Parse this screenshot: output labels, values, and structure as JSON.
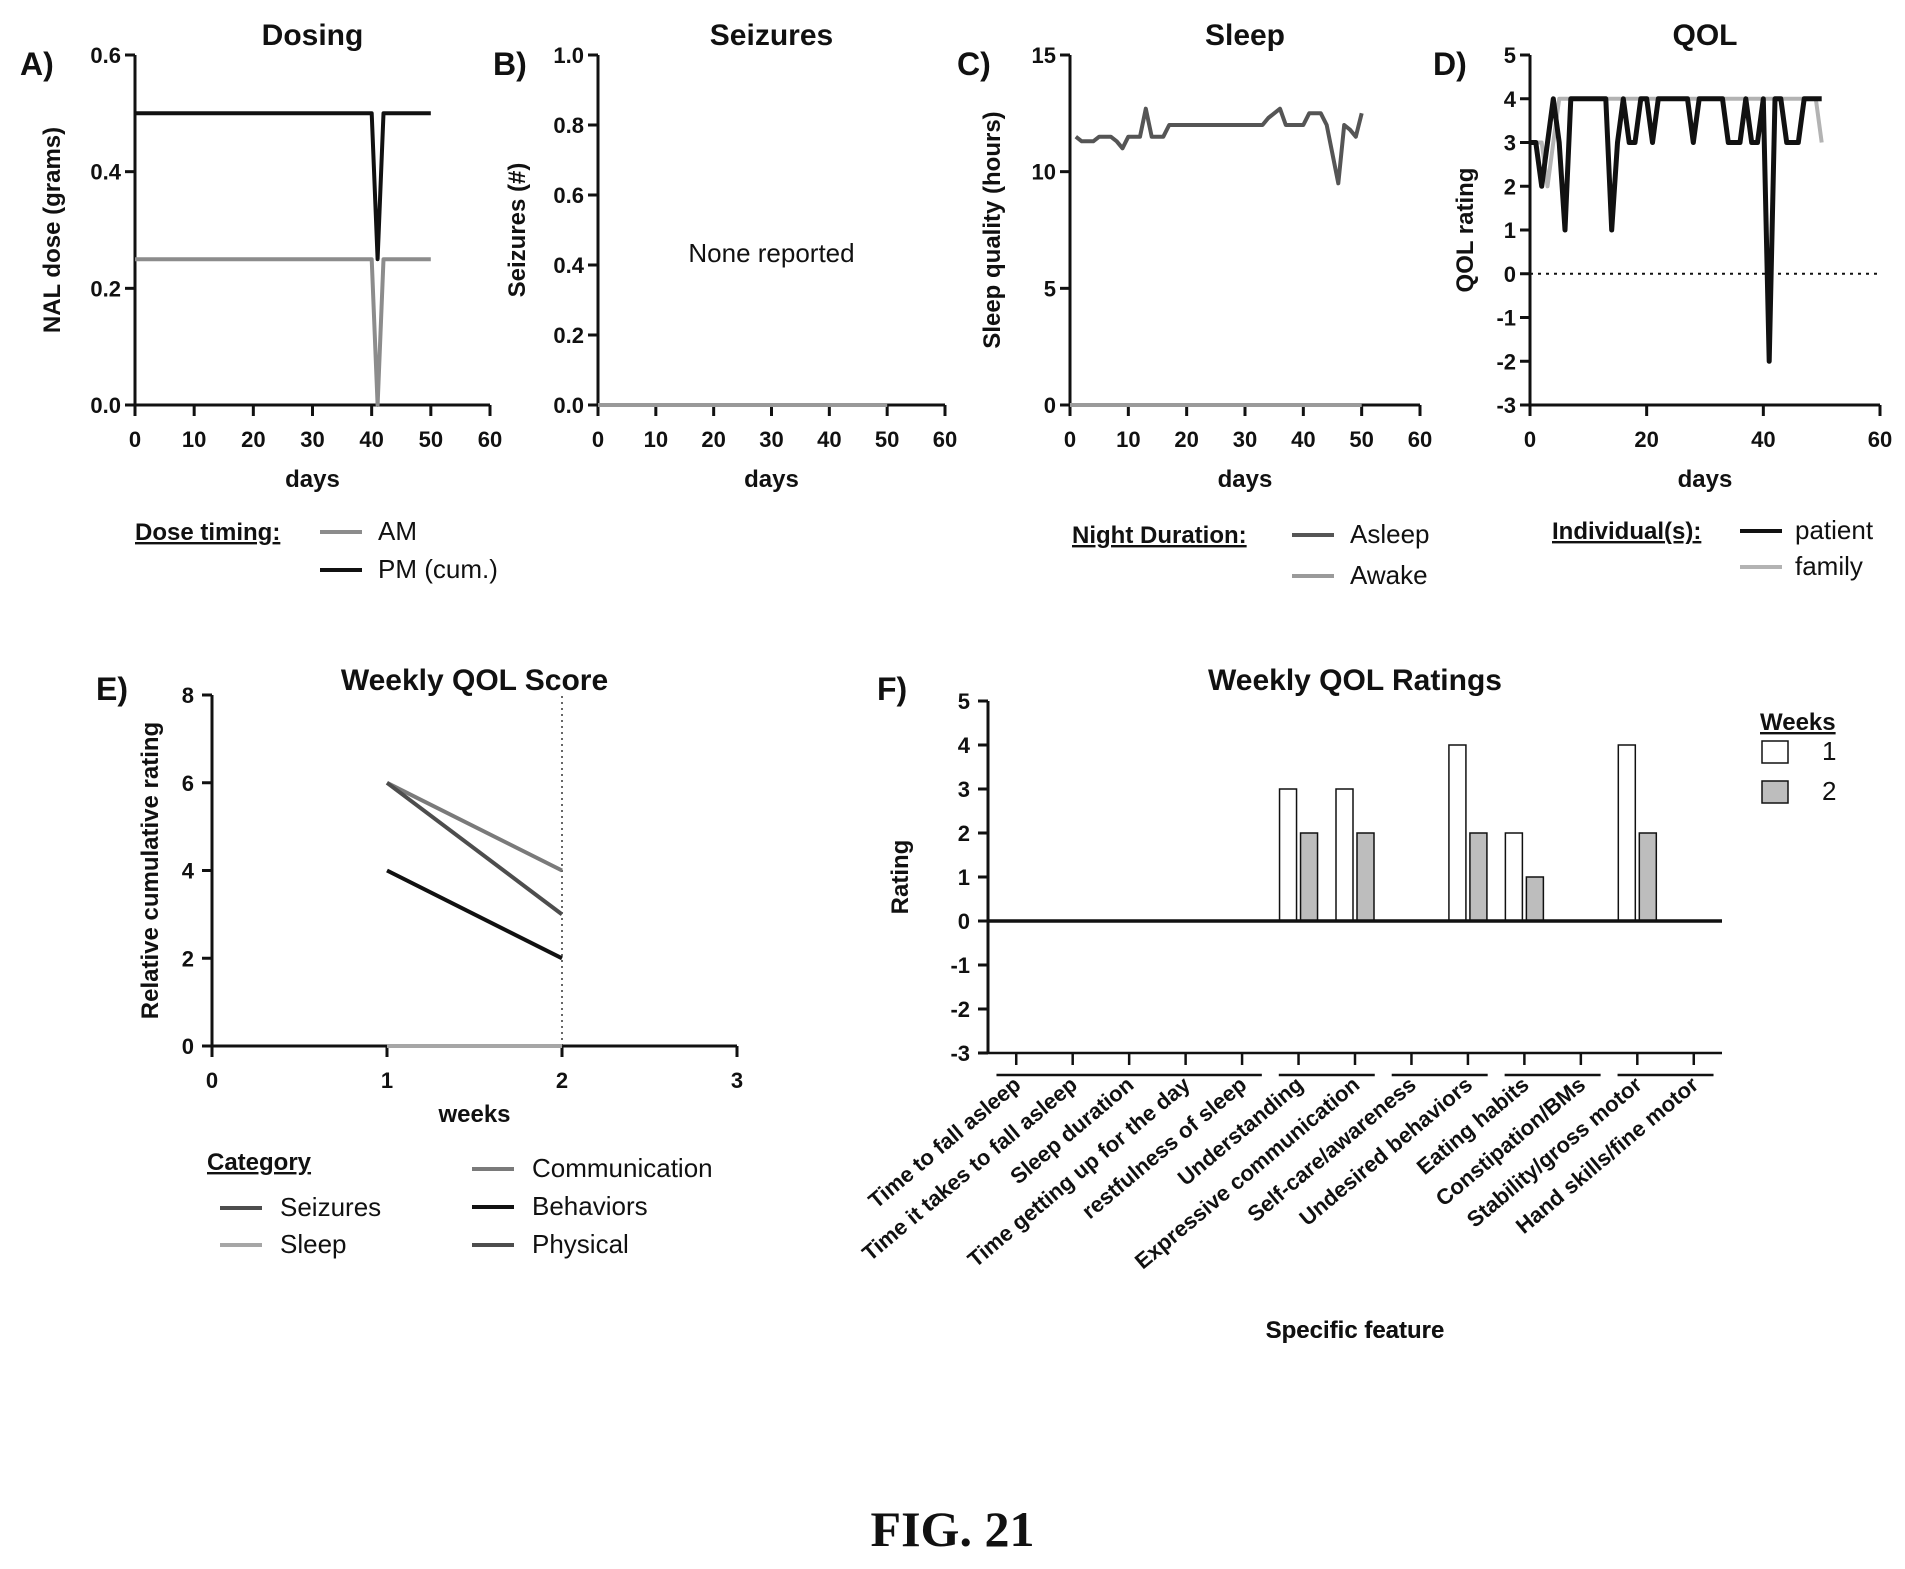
{
  "figure": {
    "caption": "FIG. 21"
  },
  "chart_data": [
    {
      "id": "A",
      "panel_label": "A)",
      "type": "line",
      "title": "Dosing",
      "xlabel": "days",
      "ylabel": "NAL dose (grams)",
      "xlim": [
        0,
        60
      ],
      "ylim": [
        0,
        0.6
      ],
      "xticks": [
        0,
        10,
        20,
        30,
        40,
        50,
        60
      ],
      "yticks": [
        0.0,
        0.2,
        0.4,
        0.6
      ],
      "x_tick_labels": [
        "0",
        "10",
        "20",
        "30",
        "40",
        "50",
        "60"
      ],
      "y_tick_labels": [
        "0.0",
        "0.2",
        "0.4",
        "0.6"
      ],
      "legend": {
        "title": "Dose timing:",
        "placement": "bottom"
      },
      "series": [
        {
          "name": "AM",
          "color": "#8c8c8c",
          "x": [
            0,
            40,
            41,
            42,
            50
          ],
          "y": [
            0.25,
            0.25,
            0.0,
            0.25,
            0.25
          ]
        },
        {
          "name": "PM (cum.)",
          "color": "#111111",
          "x": [
            0,
            40,
            41,
            42,
            50
          ],
          "y": [
            0.5,
            0.5,
            0.25,
            0.5,
            0.5
          ]
        }
      ]
    },
    {
      "id": "B",
      "panel_label": "B)",
      "type": "line",
      "title": "Seizures",
      "xlabel": "days",
      "ylabel": "Seizures (#)",
      "xlim": [
        0,
        60
      ],
      "ylim": [
        0,
        1.0
      ],
      "xticks": [
        0,
        10,
        20,
        30,
        40,
        50,
        60
      ],
      "yticks": [
        0.0,
        0.2,
        0.4,
        0.6,
        0.8,
        1.0
      ],
      "x_tick_labels": [
        "0",
        "10",
        "20",
        "30",
        "40",
        "50",
        "60"
      ],
      "y_tick_labels": [
        "0.0",
        "0.2",
        "0.4",
        "0.6",
        "0.8",
        "1.0"
      ],
      "annotation": "None reported",
      "series": [
        {
          "color": "#999999",
          "x": [
            0,
            50
          ],
          "y": [
            0,
            0
          ]
        }
      ]
    },
    {
      "id": "C",
      "panel_label": "C)",
      "type": "line",
      "title": "Sleep",
      "xlabel": "days",
      "ylabel": "Sleep quality (hours)",
      "xlim": [
        0,
        60
      ],
      "ylim": [
        0,
        15
      ],
      "xticks": [
        0,
        10,
        20,
        30,
        40,
        50,
        60
      ],
      "yticks": [
        0,
        5,
        10,
        15
      ],
      "x_tick_labels": [
        "0",
        "10",
        "20",
        "30",
        "40",
        "50",
        "60"
      ],
      "y_tick_labels": [
        "0",
        "5",
        "10",
        "15"
      ],
      "legend": {
        "title": "Night Duration:",
        "placement": "bottom"
      },
      "series": [
        {
          "name": "Asleep",
          "color": "#555555",
          "x": [
            1,
            2,
            4,
            5,
            7,
            8,
            9,
            10,
            11,
            12,
            13,
            14,
            16,
            17,
            18,
            20,
            22,
            24,
            26,
            28,
            30,
            32,
            33,
            34,
            35,
            36,
            37,
            38,
            40,
            41,
            42,
            43,
            44,
            46,
            47,
            48,
            49,
            50
          ],
          "y": [
            11.5,
            11.3,
            11.3,
            11.5,
            11.5,
            11.3,
            11.0,
            11.5,
            11.5,
            11.5,
            12.7,
            11.5,
            11.5,
            12.0,
            12.0,
            12.0,
            12.0,
            12.0,
            12.0,
            12.0,
            12.0,
            12.0,
            12.0,
            12.3,
            12.5,
            12.7,
            12.0,
            12.0,
            12.0,
            12.5,
            12.5,
            12.5,
            12.0,
            9.5,
            12.0,
            11.8,
            11.5,
            12.5
          ]
        },
        {
          "name": "Awake",
          "color": "#9a9a9a",
          "x": [
            0,
            50
          ],
          "y": [
            0,
            0
          ]
        }
      ]
    },
    {
      "id": "D",
      "panel_label": "D)",
      "type": "line",
      "title": "QOL",
      "xlabel": "days",
      "ylabel": "QOL rating",
      "xlim": [
        0,
        60
      ],
      "ylim": [
        -3,
        5
      ],
      "xticks": [
        0,
        20,
        40,
        60
      ],
      "yticks": [
        -3,
        -2,
        -1,
        0,
        1,
        2,
        3,
        4,
        5
      ],
      "x_tick_labels": [
        "0",
        "20",
        "40",
        "60"
      ],
      "y_tick_labels": [
        "-3",
        "-2",
        "-1",
        "0",
        "1",
        "2",
        "3",
        "4",
        "5"
      ],
      "reference_line": {
        "y": 0,
        "style": "dotted"
      },
      "legend": {
        "title": "Individual(s):",
        "placement": "bottom"
      },
      "series": [
        {
          "name": "patient",
          "color": "#111111",
          "x": [
            0,
            1,
            2,
            3,
            4,
            5,
            6,
            7,
            8,
            9,
            10,
            11,
            12,
            13,
            14,
            15,
            16,
            17,
            18,
            19,
            20,
            21,
            22,
            23,
            24,
            25,
            26,
            27,
            28,
            29,
            30,
            31,
            32,
            33,
            34,
            35,
            36,
            37,
            38,
            39,
            40,
            41,
            42,
            43,
            44,
            45,
            46,
            47,
            48,
            49,
            50
          ],
          "y": [
            3,
            3,
            2,
            3,
            4,
            3,
            1,
            4,
            4,
            4,
            4,
            4,
            4,
            4,
            1,
            3,
            4,
            3,
            3,
            4,
            4,
            3,
            4,
            4,
            4,
            4,
            4,
            4,
            3,
            4,
            4,
            4,
            4,
            4,
            3,
            3,
            3,
            4,
            3,
            3,
            4,
            -2,
            4,
            4,
            3,
            3,
            3,
            4,
            4,
            4,
            4
          ]
        },
        {
          "name": "family",
          "color": "#b3b3b3",
          "x": [
            0,
            1,
            2,
            3,
            4,
            5,
            8,
            12,
            16,
            20,
            24,
            28,
            32,
            36,
            40,
            44,
            47,
            48,
            49,
            50
          ],
          "y": [
            3,
            3,
            3,
            2,
            3,
            4,
            4,
            4,
            4,
            4,
            4,
            4,
            4,
            4,
            4,
            4,
            4,
            4,
            4,
            3
          ]
        }
      ]
    },
    {
      "id": "E",
      "panel_label": "E)",
      "type": "line",
      "title": "Weekly QOL Score",
      "xlabel": "weeks",
      "ylabel": "Relative cumulative rating",
      "xlim": [
        0,
        3
      ],
      "ylim": [
        0,
        8
      ],
      "xticks": [
        0,
        1,
        2,
        3
      ],
      "yticks": [
        0,
        2,
        4,
        6,
        8
      ],
      "x_tick_labels": [
        "0",
        "1",
        "2",
        "3"
      ],
      "y_tick_labels": [
        "0",
        "2",
        "4",
        "6",
        "8"
      ],
      "reference_line": {
        "x": 2,
        "style": "dotted"
      },
      "legend": {
        "title": "Category",
        "placement": "bottom"
      },
      "series": [
        {
          "name": "Seizures",
          "color": "#4d4d4d",
          "x": [
            1,
            2
          ],
          "y": [
            0,
            0
          ]
        },
        {
          "name": "Sleep",
          "color": "#a6a6a6",
          "x": [
            1,
            2
          ],
          "y": [
            0,
            0
          ]
        },
        {
          "name": "Communication",
          "color": "#7a7a7a",
          "x": [
            1,
            2
          ],
          "y": [
            6,
            4
          ]
        },
        {
          "name": "Behaviors",
          "color": "#111111",
          "x": [
            1,
            2
          ],
          "y": [
            4,
            2
          ]
        },
        {
          "name": "Physical",
          "color": "#4d4d4d",
          "x": [
            1,
            2
          ],
          "y": [
            6,
            3
          ]
        }
      ]
    },
    {
      "id": "F",
      "panel_label": "F)",
      "type": "bar",
      "title": "Weekly QOL Ratings",
      "xlabel": "Specific feature",
      "ylabel": "Rating",
      "ylim": [
        -3,
        5
      ],
      "yticks": [
        -3,
        -2,
        -1,
        0,
        1,
        2,
        3,
        4,
        5
      ],
      "y_tick_labels": [
        "-3",
        "-2",
        "-1",
        "0",
        "1",
        "2",
        "3",
        "4",
        "5"
      ],
      "legend": {
        "title": "Weeks",
        "placement": "top-right"
      },
      "categories": [
        "Time to fall asleep",
        "Time it takes to fall asleep",
        "Sleep duration",
        "Time getting up for the day",
        "restfulness of sleep",
        "Understanding",
        "Expressive communication",
        "Self-care/awareness",
        "Undesired behaviors",
        "Eating habits",
        "Constipation/BMs",
        "Stability/gross motor",
        "Hand skills/fine motor"
      ],
      "category_groups": [
        [
          0,
          4
        ],
        [
          5,
          6
        ],
        [
          7,
          8
        ],
        [
          9,
          10
        ],
        [
          11,
          12
        ]
      ],
      "series": [
        {
          "name": "1",
          "color": "#ffffff",
          "values": [
            0,
            0,
            0,
            0,
            0,
            3,
            3,
            0,
            4,
            2,
            0,
            4,
            0
          ]
        },
        {
          "name": "2",
          "color": "#bdbdbd",
          "values": [
            0,
            0,
            0,
            0,
            0,
            2,
            2,
            0,
            2,
            1,
            0,
            2,
            0
          ]
        }
      ]
    }
  ]
}
